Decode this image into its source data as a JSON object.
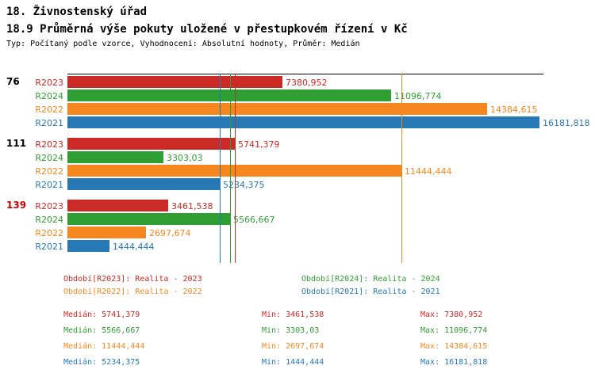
{
  "header": {
    "title": "18. Živnostenský úřad",
    "subtitle": "18.9 Průměrná výše pokuty uložené v přestupkovém řízení v Kč",
    "meta": "Typ: Počítaný podle vzorce, Vyhodnocení: Absolutní hodnoty, Průměr: Medián"
  },
  "colors": {
    "R2023": "#cc2a27",
    "R2024": "#2f9e33",
    "R2022": "#f6871f",
    "R2021": "#2779b5",
    "group_warn": "#cc0000",
    "axis": "#000000"
  },
  "chart_data": {
    "type": "bar",
    "orientation": "horizontal",
    "xlim": [
      0,
      16181.818
    ],
    "series_order": [
      "R2023",
      "R2024",
      "R2022",
      "R2021"
    ],
    "groups": [
      {
        "label": "76",
        "label_color": "#000000",
        "bars": [
          {
            "series": "R2023",
            "value": 7380.952,
            "display": "7380,952"
          },
          {
            "series": "R2024",
            "value": 11096.774,
            "display": "11096,774"
          },
          {
            "series": "R2022",
            "value": 14384.615,
            "display": "14384,615"
          },
          {
            "series": "R2021",
            "value": 16181.818,
            "display": "16181,818"
          }
        ]
      },
      {
        "label": "111",
        "label_color": "#000000",
        "bars": [
          {
            "series": "R2023",
            "value": 5741.379,
            "display": "5741,379"
          },
          {
            "series": "R2024",
            "value": 3303.03,
            "display": "3303,03"
          },
          {
            "series": "R2022",
            "value": 11444.444,
            "display": "11444,444"
          },
          {
            "series": "R2021",
            "value": 5234.375,
            "display": "5234,375"
          }
        ]
      },
      {
        "label": "139",
        "label_color": "#cc0000",
        "bars": [
          {
            "series": "R2023",
            "value": 3461.538,
            "display": "3461,538"
          },
          {
            "series": "R2024",
            "value": 5566.667,
            "display": "5566,667"
          },
          {
            "series": "R2022",
            "value": 2697.674,
            "display": "2697,674"
          },
          {
            "series": "R2021",
            "value": 1444.444,
            "display": "1444,444"
          }
        ]
      }
    ],
    "median_lines": [
      {
        "series": "R2023",
        "value": 5741.379
      },
      {
        "series": "R2024",
        "value": 5566.667
      },
      {
        "series": "R2022",
        "value": 11444.444
      },
      {
        "series": "R2021",
        "value": 5234.375
      }
    ]
  },
  "legend": {
    "items": [
      {
        "series": "R2023",
        "text": "Období[R2023]: Realita - 2023"
      },
      {
        "series": "R2024",
        "text": "Období[R2024]: Realita - 2024"
      },
      {
        "series": "R2022",
        "text": "Období[R2022]: Realita - 2022"
      },
      {
        "series": "R2021",
        "text": "Období[R2021]: Realita - 2021"
      }
    ]
  },
  "stats": {
    "rows": [
      {
        "series": "R2023",
        "median": "Medián: 5741,379",
        "min": "Min: 3461,538",
        "max": "Max: 7380,952"
      },
      {
        "series": "R2024",
        "median": "Medián: 5566,667",
        "min": "Min: 3303,03",
        "max": "Max: 11096,774"
      },
      {
        "series": "R2022",
        "median": "Medián: 11444,444",
        "min": "Min: 2697,674",
        "max": "Max: 14384,615"
      },
      {
        "series": "R2021",
        "median": "Medián: 5234,375",
        "min": "Min: 1444,444",
        "max": "Max: 16181,818"
      }
    ]
  }
}
